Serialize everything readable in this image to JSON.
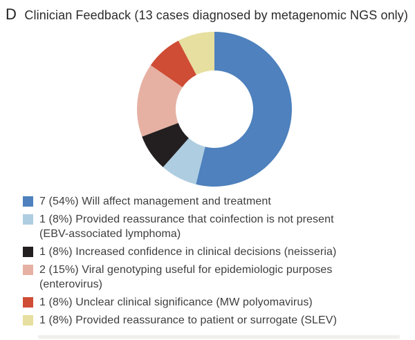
{
  "panel": {
    "label": "D"
  },
  "title": "Clinician Feedback (13 cases diagnosed by metagenomic NGS only)",
  "chart_data": {
    "type": "pie",
    "subtype": "donut",
    "title": "Clinician Feedback (13 cases diagnosed by metagenomic NGS only)",
    "total_cases": 13,
    "start_angle_deg": 0,
    "direction": "clockwise",
    "inner_radius_ratio": 0.5,
    "legend_position": "bottom-left",
    "slices": [
      {
        "label": "Will affect management and treatment",
        "count": 7,
        "percent": 54,
        "color": "#4e81bd"
      },
      {
        "label": "Provided reassurance that coinfection is not present (EBV-associated lymphoma)",
        "count": 1,
        "percent": 8,
        "color": "#aecde1"
      },
      {
        "label": "Increased confidence in clinical decisions (neisseria)",
        "count": 1,
        "percent": 8,
        "color": "#231f20"
      },
      {
        "label": "Viral genotyping useful for epidemiologic purposes (enterovirus)",
        "count": 2,
        "percent": 15,
        "color": "#e6b1a3"
      },
      {
        "label": "Unclear clinical significance (MW polyomavirus)",
        "count": 1,
        "percent": 8,
        "color": "#cf4c35"
      },
      {
        "label": "Provided reassurance to patient or surrogate (SLEV)",
        "count": 1,
        "percent": 8,
        "color": "#e7df9f"
      }
    ]
  },
  "legend": {
    "items": [
      {
        "color": "#4e81bd",
        "lines": [
          "7 (54%) Will affect management and treatment"
        ]
      },
      {
        "color": "#aecde1",
        "lines": [
          "1 (8%) Provided reassurance that coinfection is not present",
          "(EBV-associated lymphoma)"
        ]
      },
      {
        "color": "#231f20",
        "lines": [
          "1 (8%) Increased confidence in clinical decisions (neisseria)"
        ]
      },
      {
        "color": "#e6b1a3",
        "lines": [
          "2 (15%) Viral genotyping useful for epidemiologic purposes",
          "(enterovirus)"
        ]
      },
      {
        "color": "#cf4c35",
        "lines": [
          "1 (8%) Unclear clinical significance (MW polyomavirus)"
        ]
      },
      {
        "color": "#e7df9f",
        "lines": [
          "1 (8%) Provided reassurance to patient or surrogate (SLEV)"
        ]
      }
    ]
  }
}
